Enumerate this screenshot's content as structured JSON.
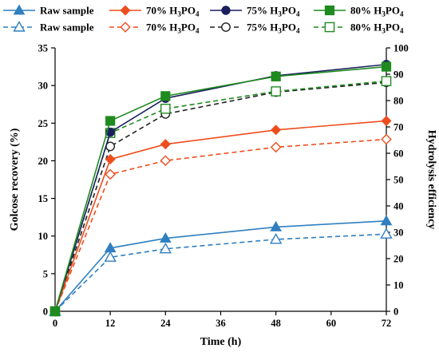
{
  "chart_data": {
    "type": "line",
    "xlabel": "Time (h)",
    "ylabel": "Golcose recovery (%)",
    "y2label": "Hydrolysis efficiency",
    "x": [
      0,
      12,
      24,
      48,
      72
    ],
    "x_ticks": [
      "0",
      "12",
      "24",
      "36",
      "48",
      "60",
      "72"
    ],
    "xlim": [
      0,
      72
    ],
    "ylim": [
      0,
      35
    ],
    "y_ticks": [
      "0",
      "5",
      "10",
      "15",
      "20",
      "25",
      "30",
      "35"
    ],
    "y2lim": [
      0,
      100
    ],
    "y2_ticks": [
      "0",
      "10",
      "20",
      "30",
      "40",
      "50",
      "60",
      "70",
      "80",
      "90",
      "100"
    ],
    "grid": false,
    "legend_position": "top",
    "series": [
      {
        "name": "Raw sample",
        "axis": "left",
        "color": "#2f7fc1",
        "marker": "triangle",
        "filled": true,
        "dashed": false,
        "values": [
          0,
          8.4,
          9.7,
          11.2,
          12.0
        ]
      },
      {
        "name": "70% H3PO4",
        "axis": "left",
        "color": "#ee4d1d",
        "marker": "diamond",
        "filled": true,
        "dashed": false,
        "values": [
          0,
          20.2,
          22.2,
          24.1,
          25.3
        ]
      },
      {
        "name": "75% H3PO4",
        "axis": "left",
        "color": "#1a1f5e",
        "marker": "circle",
        "filled": true,
        "dashed": false,
        "values": [
          0,
          23.8,
          28.3,
          31.3,
          32.8
        ]
      },
      {
        "name": "80% H3PO4",
        "axis": "left",
        "color": "#1f8a1f",
        "marker": "square",
        "filled": true,
        "dashed": false,
        "values": [
          0,
          25.3,
          28.6,
          31.2,
          32.5
        ]
      },
      {
        "name": "Raw sample",
        "axis": "right",
        "color": "#2f7fc1",
        "marker": "triangle",
        "filled": false,
        "dashed": true,
        "values": [
          0,
          20.5,
          23.7,
          27.3,
          29.3
        ]
      },
      {
        "name": "70% H3PO4",
        "axis": "right",
        "color": "#ee4d1d",
        "marker": "diamond",
        "filled": false,
        "dashed": true,
        "values": [
          0,
          52.0,
          57.2,
          62.3,
          65.3
        ]
      },
      {
        "name": "75% H3PO4",
        "axis": "right",
        "color": "#222222",
        "marker": "circle",
        "filled": false,
        "dashed": true,
        "values": [
          0,
          62.6,
          74.9,
          83.2,
          86.9
        ]
      },
      {
        "name": "80% H3PO4",
        "axis": "right",
        "color": "#1f8a1f",
        "marker": "square",
        "filled": false,
        "dashed": true,
        "values": [
          0,
          67.7,
          76.9,
          83.5,
          87.4
        ]
      }
    ]
  }
}
